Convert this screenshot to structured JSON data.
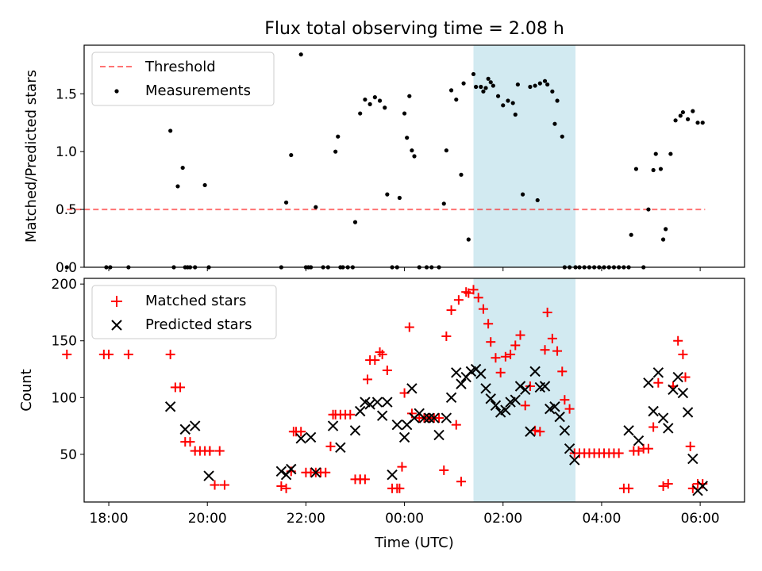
{
  "chart_data": [
    {
      "type": "scatter",
      "title": "Flux total observing time = 2.08 h",
      "ylabel": "Matched/Predicted stars",
      "xlim": [
        -6.5,
        6.9
      ],
      "ylim": [
        0,
        1.92
      ],
      "yticks": [
        0.0,
        0.5,
        1.0,
        1.5
      ],
      "ytick_labels": [
        "0.0",
        "0.5",
        "1.0",
        "1.5"
      ],
      "shaded_region": {
        "x": [
          1.4,
          3.47
        ],
        "color": "#add8e6"
      },
      "legend_position": "upper left",
      "series": [
        {
          "name": "Threshold",
          "style": "dashed-line",
          "color": "#ff0000",
          "x": [
            -6.85,
            6.1
          ],
          "y": [
            0.5,
            0.5
          ]
        },
        {
          "name": "Measurements",
          "style": "dot",
          "color": "#000000",
          "x": [
            -6.85,
            -6.05,
            -5.97,
            -5.6,
            -4.75,
            -4.68,
            -4.5,
            -4.45,
            -4.25,
            -4.05,
            -4.6,
            -4.4,
            -4.35,
            -3.97,
            -2.5,
            -2.4,
            -2.3,
            -2.1,
            -2.0,
            -1.9,
            -1.8,
            -1.95,
            -1.65,
            -1.55,
            -1.4,
            -1.35,
            -1.25,
            -1.15,
            -1.05,
            -1.3,
            -1.0,
            -0.9,
            -0.8,
            -0.7,
            -0.6,
            -0.5,
            -0.4,
            -0.35,
            -0.25,
            -0.15,
            -0.1,
            0.0,
            0.05,
            0.1,
            0.15,
            0.2,
            0.3,
            0.45,
            0.55,
            0.7,
            0.8,
            0.85,
            0.95,
            1.05,
            1.15,
            1.3,
            1.4,
            1.45,
            1.55,
            1.6,
            1.65,
            1.7,
            1.75,
            1.8,
            1.9,
            2.0,
            2.1,
            2.2,
            2.25,
            2.3,
            2.4,
            2.55,
            2.65,
            2.75,
            2.85,
            2.9,
            3.0,
            3.05,
            3.1,
            3.2,
            3.25,
            3.35,
            3.47,
            3.55,
            3.65,
            3.75,
            3.85,
            3.95,
            4.05,
            4.15,
            4.25,
            4.35,
            4.45,
            4.55,
            4.6,
            4.7,
            4.85,
            4.95,
            5.05,
            5.1,
            5.2,
            5.25,
            5.3,
            5.4,
            5.5,
            5.6,
            5.65,
            5.75,
            5.85,
            5.95,
            6.05,
            1.2,
            2.7
          ],
          "y": [
            0.0,
            0.0,
            0.0,
            0.0,
            1.18,
            0.0,
            0.86,
            0.0,
            0.0,
            0.71,
            0.7,
            0.0,
            0.0,
            0.0,
            0.0,
            0.56,
            0.97,
            1.84,
            0.0,
            0.0,
            0.52,
            0.0,
            0.0,
            0.0,
            1.0,
            1.13,
            0.0,
            0.0,
            0.0,
            0.0,
            0.39,
            1.33,
            1.45,
            1.41,
            1.47,
            1.44,
            1.38,
            0.63,
            0.0,
            0.0,
            0.6,
            1.33,
            1.12,
            1.48,
            1.01,
            0.96,
            0.0,
            0.0,
            0.0,
            0.0,
            0.55,
            1.01,
            1.53,
            1.45,
            0.8,
            0.24,
            1.67,
            1.56,
            1.56,
            1.52,
            1.55,
            1.63,
            1.6,
            1.57,
            1.48,
            1.4,
            1.44,
            1.42,
            1.32,
            1.58,
            0.63,
            1.56,
            1.57,
            1.59,
            1.61,
            1.58,
            1.52,
            1.24,
            1.44,
            1.13,
            0.0,
            0.0,
            0.0,
            0.0,
            0.0,
            0.0,
            0.0,
            0.0,
            0.0,
            0.0,
            0.0,
            0.0,
            0.0,
            0.0,
            0.28,
            0.85,
            0.0,
            0.5,
            0.84,
            0.98,
            0.85,
            0.24,
            0.33,
            0.98,
            1.27,
            1.31,
            1.34,
            1.28,
            1.35,
            1.25,
            1.25,
            1.59,
            0.58
          ]
        }
      ]
    },
    {
      "type": "scatter",
      "xlabel": "Time (UTC)",
      "ylabel": "Count",
      "xlim": [
        -6.5,
        6.9
      ],
      "ylim": [
        8,
        205
      ],
      "xticks": [
        -6,
        -4,
        -2,
        0,
        2,
        4,
        6
      ],
      "xtick_labels": [
        "18:00",
        "20:00",
        "22:00",
        "00:00",
        "02:00",
        "04:00",
        "06:00"
      ],
      "yticks": [
        50,
        100,
        150,
        200
      ],
      "ytick_labels": [
        "50",
        "100",
        "150",
        "200"
      ],
      "shaded_region": {
        "x": [
          1.4,
          3.47
        ],
        "color": "#add8e6"
      },
      "legend_position": "upper left",
      "series": [
        {
          "name": "Matched stars",
          "style": "plus",
          "color": "#ff0000",
          "x": [
            -6.85,
            -6.1,
            -6.0,
            -5.6,
            -4.75,
            -4.65,
            -4.55,
            -4.45,
            -4.35,
            -4.25,
            -4.15,
            -4.05,
            -3.95,
            -3.85,
            -3.65,
            -3.95,
            -3.75,
            -2.5,
            -2.4,
            -2.3,
            -2.25,
            -2.2,
            -2.1,
            -2.0,
            -1.9,
            -1.8,
            -1.7,
            -1.6,
            -1.5,
            -1.45,
            -1.4,
            -1.3,
            -1.2,
            -1.1,
            -1.0,
            -0.9,
            -0.8,
            -0.75,
            -0.9,
            -0.7,
            -0.6,
            -0.5,
            -0.45,
            -0.35,
            -0.25,
            -0.15,
            -0.1,
            -0.05,
            0.0,
            0.1,
            0.15,
            0.3,
            0.4,
            0.5,
            0.6,
            0.7,
            0.8,
            0.85,
            0.95,
            1.05,
            1.15,
            1.25,
            1.3,
            1.4,
            1.5,
            1.6,
            1.7,
            1.75,
            1.85,
            1.95,
            2.05,
            2.15,
            2.25,
            2.35,
            2.45,
            2.55,
            2.65,
            2.75,
            2.85,
            2.9,
            3.0,
            3.1,
            3.2,
            3.25,
            3.35,
            3.45,
            3.55,
            3.65,
            3.75,
            3.85,
            3.95,
            4.05,
            4.15,
            4.25,
            4.35,
            4.45,
            4.55,
            4.65,
            4.75,
            4.85,
            4.95,
            5.05,
            5.15,
            5.25,
            5.35,
            5.45,
            5.55,
            5.65,
            5.7,
            5.8,
            5.85,
            5.95,
            6.05,
            1.1
          ],
          "y": [
            138,
            138,
            138,
            138,
            138,
            109,
            109,
            61,
            61,
            53,
            53,
            53,
            53,
            23,
            23,
            53,
            53,
            22,
            20,
            35,
            70,
            70,
            70,
            34,
            34,
            34,
            34,
            34,
            57,
            85,
            85,
            85,
            85,
            85,
            28,
            28,
            28,
            116,
            28,
            133,
            133,
            140,
            138,
            124,
            20,
            20,
            20,
            39,
            104,
            162,
            86,
            82,
            82,
            82,
            82,
            82,
            36,
            154,
            177,
            76,
            26,
            193,
            192,
            195,
            188,
            178,
            165,
            149,
            135,
            122,
            136,
            138,
            146,
            155,
            93,
            110,
            71,
            70,
            142,
            175,
            152,
            141,
            123,
            98,
            90,
            51,
            51,
            51,
            51,
            51,
            51,
            51,
            51,
            51,
            51,
            20,
            20,
            53,
            53,
            55,
            55,
            74,
            113,
            22,
            24,
            110,
            150,
            138,
            118,
            57,
            20,
            24,
            24,
            186
          ]
        },
        {
          "name": "Predicted stars",
          "style": "x",
          "color": "#000000",
          "x": [
            -4.75,
            -4.45,
            -4.25,
            -3.97,
            -2.5,
            -2.4,
            -2.3,
            -2.1,
            -1.9,
            -1.8,
            -1.45,
            -1.3,
            -1.0,
            -0.9,
            -0.8,
            -0.7,
            -0.55,
            -0.45,
            -0.35,
            -0.25,
            -0.15,
            0.0,
            0.05,
            0.15,
            0.2,
            0.3,
            0.4,
            0.5,
            0.6,
            0.7,
            0.85,
            0.95,
            1.05,
            1.15,
            1.25,
            1.35,
            1.45,
            1.55,
            1.65,
            1.75,
            1.85,
            1.95,
            2.05,
            2.15,
            2.25,
            2.35,
            2.45,
            2.55,
            2.65,
            2.75,
            2.85,
            2.95,
            3.05,
            3.15,
            3.25,
            3.35,
            3.45,
            4.55,
            4.75,
            4.95,
            5.05,
            5.15,
            5.25,
            5.35,
            5.45,
            5.55,
            5.65,
            5.75,
            5.85,
            5.95,
            6.05
          ],
          "y": [
            92,
            72,
            75,
            31,
            35,
            32,
            37,
            64,
            65,
            34,
            75,
            56,
            71,
            88,
            96,
            94,
            96,
            84,
            96,
            32,
            76,
            65,
            76,
            108,
            82,
            86,
            82,
            82,
            82,
            67,
            82,
            100,
            122,
            112,
            118,
            123,
            125,
            121,
            108,
            99,
            93,
            87,
            89,
            96,
            98,
            110,
            107,
            70,
            123,
            109,
            110,
            90,
            92,
            83,
            71,
            55,
            45,
            71,
            62,
            113,
            88,
            122,
            82,
            73,
            107,
            118,
            104,
            87,
            46,
            18,
            22
          ]
        }
      ]
    }
  ]
}
